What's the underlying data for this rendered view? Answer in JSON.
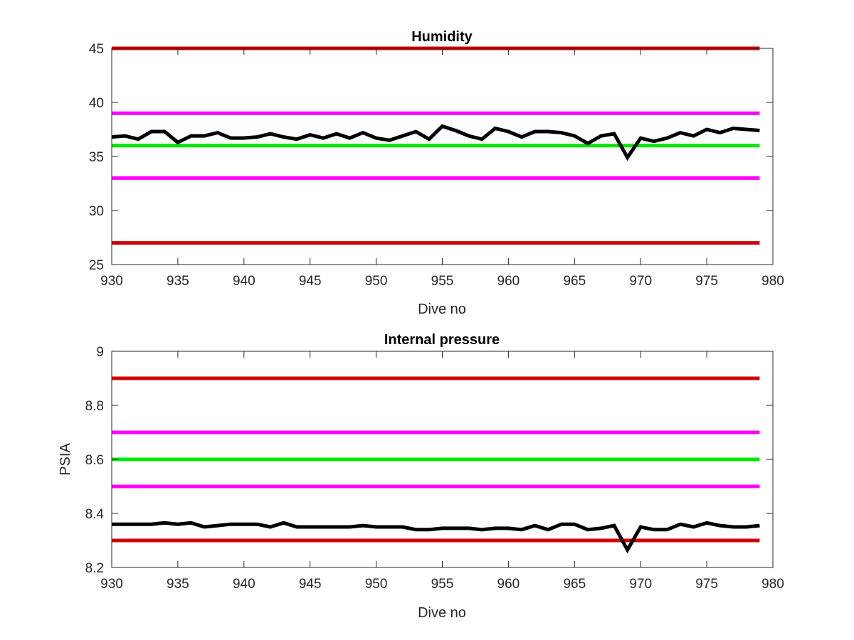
{
  "chart_data": [
    {
      "type": "line",
      "title": "Humidity",
      "xlabel": "Dive no",
      "ylabel": "",
      "xlim": [
        930,
        980
      ],
      "ylim": [
        25,
        45
      ],
      "xticks": [
        930,
        935,
        940,
        945,
        950,
        955,
        960,
        965,
        970,
        975,
        980
      ],
      "yticks": [
        25,
        30,
        35,
        40,
        45
      ],
      "grid": false,
      "reference_lines": [
        {
          "y": 45,
          "color": "#d20000"
        },
        {
          "y": 39,
          "color": "#ff00ff"
        },
        {
          "y": 36,
          "color": "#00e600"
        },
        {
          "y": 33,
          "color": "#ff00ff"
        },
        {
          "y": 27,
          "color": "#d20000"
        }
      ],
      "series": [
        {
          "color": "#000000",
          "x": [
            930,
            931,
            932,
            933,
            934,
            935,
            936,
            937,
            938,
            939,
            940,
            941,
            942,
            943,
            944,
            945,
            946,
            947,
            948,
            949,
            950,
            951,
            952,
            953,
            954,
            955,
            956,
            957,
            958,
            959,
            960,
            961,
            962,
            963,
            964,
            965,
            966,
            967,
            968,
            969,
            970,
            971,
            972,
            973,
            974,
            975,
            976,
            977,
            978,
            979
          ],
          "values": [
            36.8,
            36.9,
            36.6,
            37.3,
            37.3,
            36.3,
            36.9,
            36.9,
            37.2,
            36.7,
            36.7,
            36.8,
            37.1,
            36.8,
            36.6,
            37.0,
            36.7,
            37.1,
            36.7,
            37.2,
            36.7,
            36.5,
            36.9,
            37.3,
            36.6,
            37.8,
            37.4,
            36.9,
            36.6,
            37.6,
            37.3,
            36.8,
            37.3,
            37.3,
            37.2,
            36.9,
            36.2,
            36.9,
            37.1,
            34.9,
            36.7,
            36.4,
            36.7,
            37.2,
            36.9,
            37.5,
            37.2,
            37.6,
            37.5,
            37.4
          ]
        }
      ]
    },
    {
      "type": "line",
      "title": "Internal pressure",
      "xlabel": "Dive no",
      "ylabel": "PSIA",
      "xlim": [
        930,
        980
      ],
      "ylim": [
        8.2,
        9
      ],
      "xticks": [
        930,
        935,
        940,
        945,
        950,
        955,
        960,
        965,
        970,
        975,
        980
      ],
      "yticks": [
        8.2,
        8.4,
        8.6,
        8.8,
        9
      ],
      "ytick_labels": [
        "8.2",
        "8.4",
        "8.6",
        "8.8",
        "9"
      ],
      "grid": false,
      "reference_lines": [
        {
          "y": 8.9,
          "color": "#d20000"
        },
        {
          "y": 8.7,
          "color": "#ff00ff"
        },
        {
          "y": 8.6,
          "color": "#00e600"
        },
        {
          "y": 8.5,
          "color": "#ff00ff"
        },
        {
          "y": 8.3,
          "color": "#d20000"
        }
      ],
      "series": [
        {
          "color": "#000000",
          "x": [
            930,
            931,
            932,
            933,
            934,
            935,
            936,
            937,
            938,
            939,
            940,
            941,
            942,
            943,
            944,
            945,
            946,
            947,
            948,
            949,
            950,
            951,
            952,
            953,
            954,
            955,
            956,
            957,
            958,
            959,
            960,
            961,
            962,
            963,
            964,
            965,
            966,
            967,
            968,
            969,
            970,
            971,
            972,
            973,
            974,
            975,
            976,
            977,
            978,
            979
          ],
          "values": [
            8.36,
            8.36,
            8.36,
            8.36,
            8.365,
            8.36,
            8.365,
            8.35,
            8.355,
            8.36,
            8.36,
            8.36,
            8.35,
            8.365,
            8.35,
            8.35,
            8.35,
            8.35,
            8.35,
            8.355,
            8.35,
            8.35,
            8.35,
            8.34,
            8.34,
            8.345,
            8.345,
            8.345,
            8.34,
            8.345,
            8.345,
            8.34,
            8.355,
            8.34,
            8.36,
            8.36,
            8.34,
            8.345,
            8.355,
            8.265,
            8.35,
            8.34,
            8.34,
            8.36,
            8.35,
            8.365,
            8.355,
            8.35,
            8.35,
            8.355
          ]
        }
      ]
    }
  ]
}
